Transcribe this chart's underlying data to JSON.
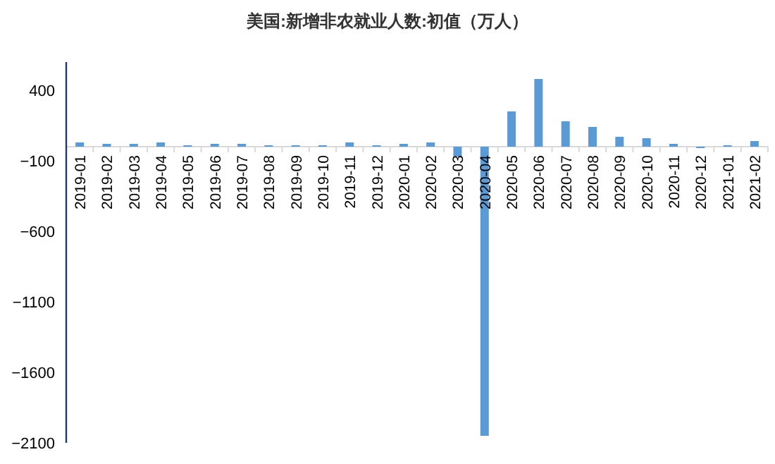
{
  "chart_data": {
    "type": "bar",
    "title": "美国:新增非农就业人数:初值（万人）",
    "categories": [
      "2019-01",
      "2019-02",
      "2019-03",
      "2019-04",
      "2019-05",
      "2019-06",
      "2019-07",
      "2019-08",
      "2019-09",
      "2019-10",
      "2019-11",
      "2019-12",
      "2020-01",
      "2020-02",
      "2020-03",
      "2020-04",
      "2020-05",
      "2020-06",
      "2020-07",
      "2020-08",
      "2020-09",
      "2020-10",
      "2020-11",
      "2020-12",
      "2021-01",
      "2021-02"
    ],
    "values": [
      30,
      20,
      20,
      30,
      10,
      20,
      20,
      10,
      10,
      10,
      30,
      10,
      20,
      30,
      -70,
      -2050,
      250,
      480,
      180,
      140,
      70,
      60,
      20,
      -10,
      10,
      40
    ],
    "color": "#5b9bd5",
    "ylim": [
      -2100,
      600
    ],
    "yticks": [
      400,
      -100,
      -600,
      -1100,
      -1600,
      -2100
    ]
  }
}
